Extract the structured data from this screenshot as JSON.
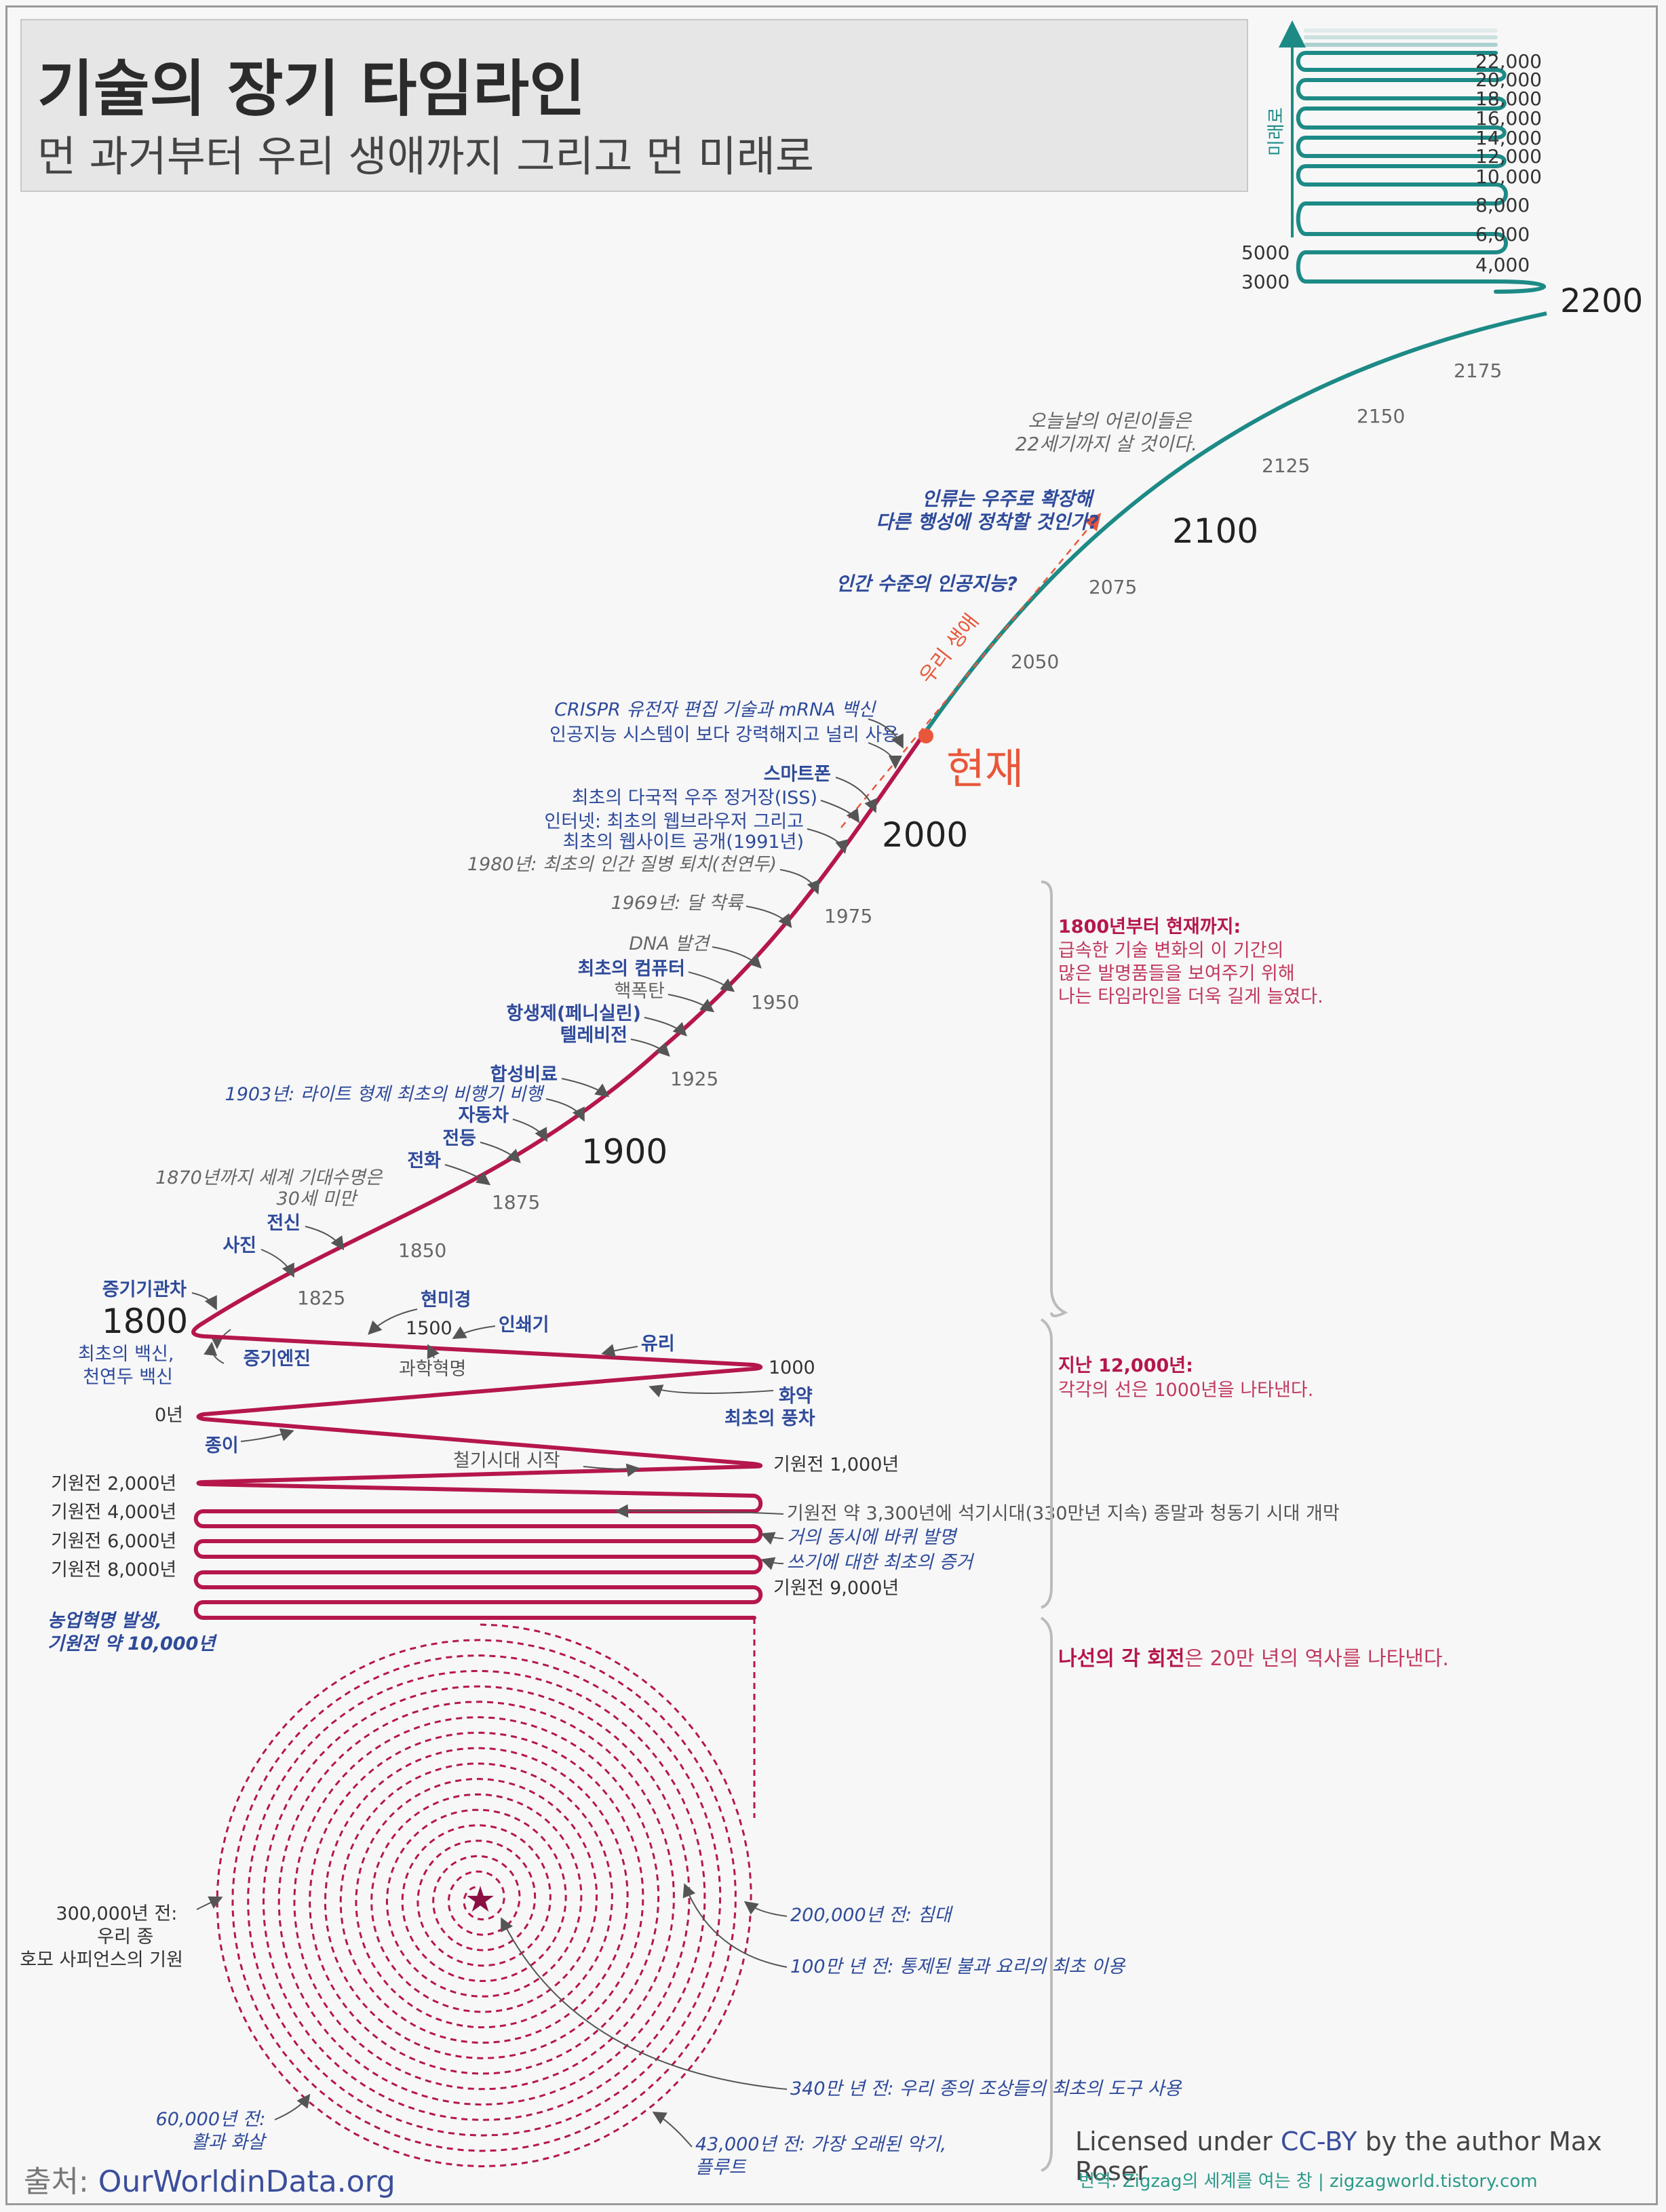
{
  "header": {
    "title": "기술의 장기 타임라인",
    "subtitle": "먼 과거부터 우리 생애까지 그리고 먼 미래로"
  },
  "colors": {
    "past": "#b5174b",
    "future": "#1d8a86",
    "now": "#e8573a",
    "event_blue": "#2e4a9a",
    "grey": "#666666"
  },
  "future_axis": {
    "label": "미래로",
    "years": [
      "22,000",
      "20,000",
      "18,000",
      "16,000",
      "14,000",
      "12,000",
      "10,000",
      "8,000",
      "6,000",
      "4,000",
      "5000",
      "3000",
      "2200"
    ]
  },
  "century_scale": {
    "years": [
      "2175",
      "2150",
      "2125",
      "2100",
      "2075",
      "2050",
      "2000",
      "1975",
      "1950",
      "1925",
      "1900",
      "1875",
      "1850",
      "1825",
      "1800"
    ]
  },
  "now_label": "현재",
  "our_lifetime": "우리 생애",
  "future_notes": {
    "children": "오늘날의 어린이들은\n22세기까지 살 것이다.",
    "space": "인류는 우주로 확장해\n다른 행성에 정착할 것인가?",
    "agi": "인간 수준의 인공지능?"
  },
  "modern_events": {
    "crispr": "CRISPR 유전자 편집 기술과 mRNA 백신",
    "ai": "인공지능 시스템이 보다 강력해지고 널리 사용",
    "smartphone": "스마트폰",
    "iss": "최초의 다국적 우주 정거장(ISS)",
    "internet": "인터넷: 최초의 웹브라우저 그리고",
    "website": "최초의 웹사이트 공개(1991년)",
    "smallpox": "1980년: 최초의 인간 질병 퇴치(천연두)",
    "moon": "1969년: 달 착륙",
    "dna": "DNA 발견",
    "computer": "최초의 컴퓨터",
    "nuclear": "핵폭탄",
    "antibiotic": "항생제(페니실린)",
    "tv": "텔레비전",
    "synthetic": "합성비료",
    "airplane": "1903년: 라이트 형제 최초의 비행기 비행",
    "car": "자동차",
    "bulb": "전등",
    "phone": "전화",
    "lifeexp": "1870년까지 세계 기대수명은\n30세 미만",
    "telegraph": "전신",
    "photo": "사진",
    "locomotive": "증기기관차",
    "steam": "증기엔진",
    "vaccine": "최초의 백신,\n천연두 백신"
  },
  "early_events": {
    "microscope": "현미경",
    "printing": "인쇄기",
    "year1500": "1500",
    "scirev": "과학혁명",
    "glass": "유리",
    "year1000": "1000",
    "gunpowder": "화약",
    "windmill": "최초의 풍차",
    "year0": "0년",
    "paper": "종이",
    "iron": "철기시대 시작",
    "bc1000": "기원전 1,000년",
    "bc2000": "기원전 2,000년",
    "bc4000": "기원전 4,000년",
    "bc6000": "기원전 6,000년",
    "bc8000": "기원전 8,000년",
    "bc9000": "기원전 9,000년",
    "bronze": "기원전 약 3,300년에 석기시대(330만년 지속) 종말과 청동기 시대 개막",
    "wheel": "거의 동시에 바퀴 발명",
    "writing": "쓰기에 대한 최초의 증거",
    "agri": "농업혁명 발생,\n기원전 약 10,000년"
  },
  "brackets": {
    "b1_title": "1800년부터 현재까지:",
    "b1_body": "급속한 기술 변화의 이 기간의\n많은 발명품들을 보여주기 위해\n나는 타임라인을 더욱 길게 늘였다.",
    "b2_title": "지난 12,000년:",
    "b2_body": "각각의 선은 1000년을 나타낸다.",
    "b3_bold": "나선의 각 회전",
    "b3_rest": "은 20만 년의 역사를 나타낸다."
  },
  "spiral_events": {
    "sapiens": "300,000년 전:\n우리 종\n호모 사피언스의 기원",
    "bed": "200,000년 전: 침대",
    "fire": "100만 년 전: 통제된 불과 요리의 최초 이용",
    "tools": "340만 년 전: 우리 종의 조상들의 최초의 도구 사용",
    "bow": "60,000년 전:\n활과 화살",
    "flute": "43,000년 전: 가장 오래된 악기,\n플루트"
  },
  "footer": {
    "source_label": "출처:",
    "source": "OurWorldinData.org",
    "license_pre": "Licensed under ",
    "license_link": "CC-BY",
    "license_post": " by the author Max Roser",
    "translation": "번역: Zigzag의 세계를 여는 창 | zigzagworld.tistory.com"
  }
}
